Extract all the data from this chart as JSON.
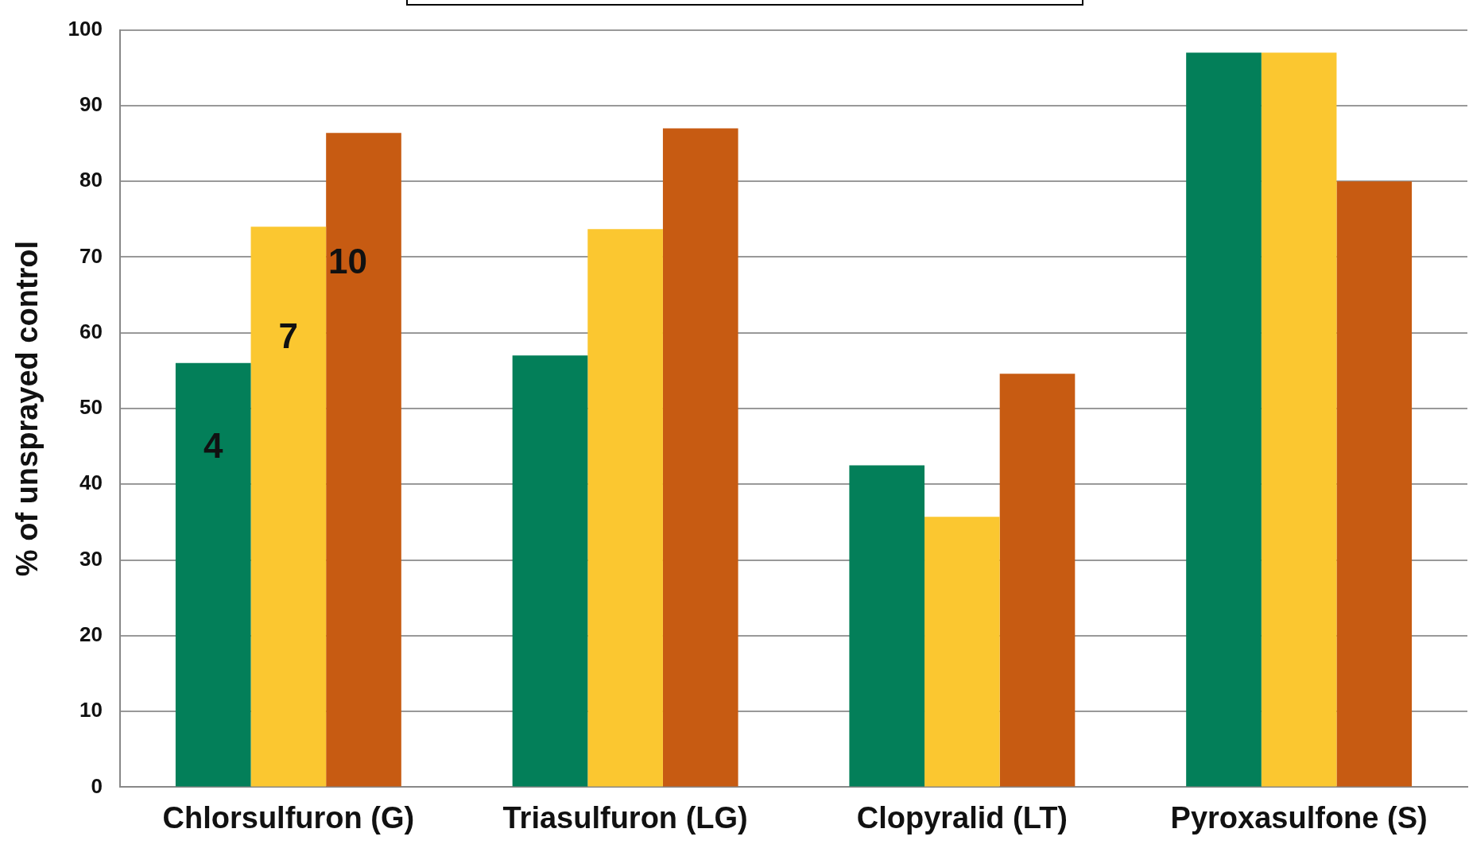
{
  "chart_data": {
    "type": "bar",
    "ylabel": "% of unsprayed control",
    "categories": [
      "Chlorsulfuron (G)",
      "Triasulfuron (LG)",
      "Clopyralid (LT)",
      "Pyroxasulfone (S)"
    ],
    "series": [
      {
        "name": "4",
        "color": "#037f59",
        "values": [
          56,
          57,
          42.5,
          97
        ]
      },
      {
        "name": "7",
        "color": "#fbc730",
        "values": [
          74,
          73.7,
          35.7,
          97
        ]
      },
      {
        "name": "10",
        "color": "#c75b12",
        "values": [
          86.4,
          87,
          54.6,
          80
        ]
      }
    ],
    "ylim": [
      0,
      100
    ],
    "yticks": [
      0,
      10,
      20,
      30,
      40,
      50,
      60,
      70,
      80,
      90,
      100
    ],
    "grid": "y",
    "legend": false
  }
}
